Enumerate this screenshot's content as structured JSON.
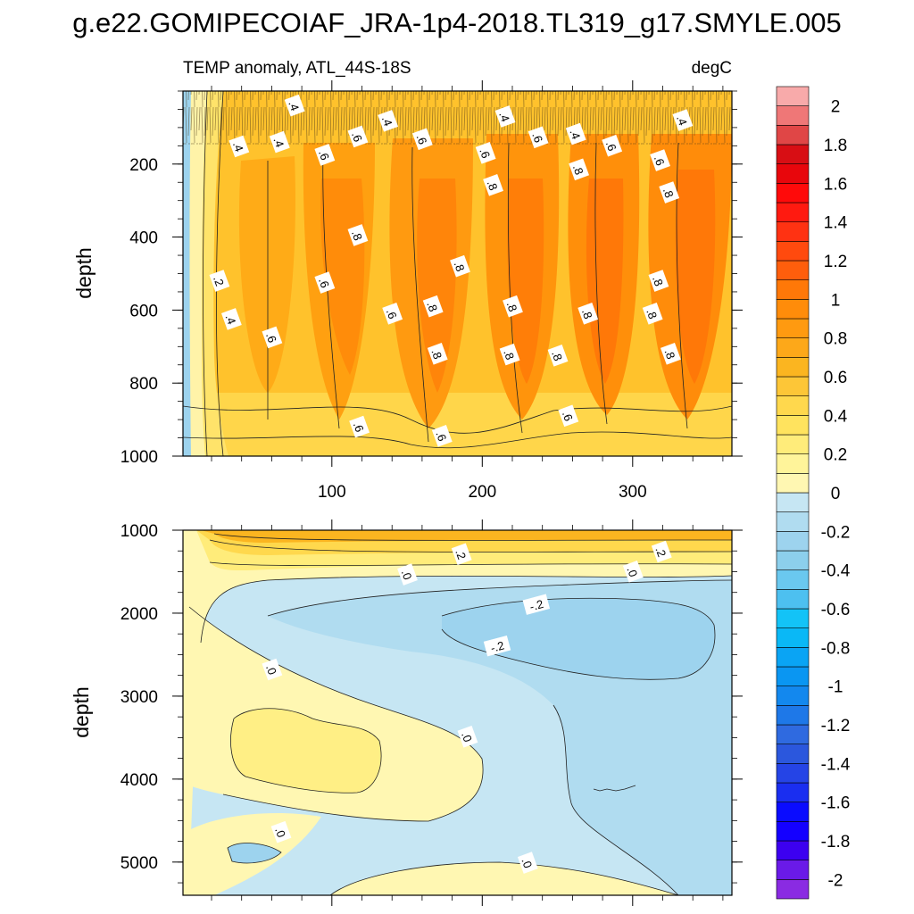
{
  "chart_data": {
    "type": "contour",
    "title": "g.e22.GOMIPECOIAF_JRA-1p4-2018.TL319_g17.SMYLE.005",
    "subtitle_left": "TEMP anomaly, ATL_44S-18S",
    "subtitle_right": "degC",
    "ylabel": "depth",
    "x_range": [
      1,
      366
    ],
    "colors": {
      "axis": "#000000",
      "contour_line": "#222222"
    },
    "upper_panel": {
      "y_range": [
        0,
        1000
      ],
      "y_ticks": [
        200,
        400,
        600,
        800,
        1000
      ],
      "y_tick_labels": [
        "200",
        "400",
        "600",
        "800",
        "1000"
      ],
      "x_ticks": [
        100,
        200,
        300
      ],
      "x_tick_labels": [
        "100",
        "200",
        "300"
      ],
      "contour_labels": [
        {
          "text": ".4",
          "x": 75,
          "y": 40
        },
        {
          "text": ".4",
          "x": 137,
          "y": 82
        },
        {
          "text": ".4",
          "x": 215,
          "y": 70
        },
        {
          "text": ".4",
          "x": 262,
          "y": 118
        },
        {
          "text": ".4",
          "x": 333,
          "y": 80
        },
        {
          "text": ".4",
          "x": 38,
          "y": 152
        },
        {
          "text": ".4",
          "x": 65,
          "y": 140
        },
        {
          "text": ".6",
          "x": 95,
          "y": 175
        },
        {
          "text": ".6",
          "x": 117,
          "y": 125
        },
        {
          "text": ".6",
          "x": 160,
          "y": 132
        },
        {
          "text": ".6",
          "x": 202,
          "y": 170
        },
        {
          "text": ".6",
          "x": 237,
          "y": 127
        },
        {
          "text": ".6",
          "x": 286,
          "y": 150
        },
        {
          "text": ".6",
          "x": 318,
          "y": 190
        },
        {
          "text": ".8",
          "x": 264,
          "y": 215
        },
        {
          "text": ".8",
          "x": 207,
          "y": 258
        },
        {
          "text": ".8",
          "x": 324,
          "y": 278
        },
        {
          "text": ".8",
          "x": 117,
          "y": 395
        },
        {
          "text": ".8",
          "x": 185,
          "y": 480
        },
        {
          "text": ".2",
          "x": 25,
          "y": 520
        },
        {
          "text": ".6",
          "x": 95,
          "y": 525
        },
        {
          "text": ".8",
          "x": 317,
          "y": 520
        },
        {
          "text": ".4",
          "x": 33,
          "y": 625
        },
        {
          "text": ".6",
          "x": 140,
          "y": 610
        },
        {
          "text": ".8",
          "x": 167,
          "y": 590
        },
        {
          "text": ".8",
          "x": 220,
          "y": 590
        },
        {
          "text": ".8",
          "x": 270,
          "y": 610
        },
        {
          "text": ".8",
          "x": 313,
          "y": 610
        },
        {
          "text": ".6",
          "x": 60,
          "y": 675
        },
        {
          "text": ".8",
          "x": 170,
          "y": 720
        },
        {
          "text": ".8",
          "x": 218,
          "y": 722
        },
        {
          "text": ".8",
          "x": 250,
          "y": 725
        },
        {
          "text": ".8",
          "x": 325,
          "y": 720
        },
        {
          "text": ".6",
          "x": 257,
          "y": 890
        },
        {
          "text": ".6",
          "x": 118,
          "y": 920
        },
        {
          "text": ".6",
          "x": 173,
          "y": 945
        }
      ]
    },
    "lower_panel": {
      "y_range": [
        1000,
        5400
      ],
      "y_ticks": [
        1000,
        2000,
        3000,
        4000,
        5000
      ],
      "y_tick_labels": [
        "1000",
        "2000",
        "3000",
        "4000",
        "5000"
      ],
      "x_ticks": [
        100,
        200,
        300
      ],
      "contour_labels": [
        {
          "text": ".2",
          "x": 186,
          "y": 1290
        },
        {
          "text": ".2",
          "x": 319,
          "y": 1260
        },
        {
          "text": ".0",
          "x": 150,
          "y": 1535
        },
        {
          "text": ".0",
          "x": 300,
          "y": 1500
        },
        {
          "text": "-.2",
          "x": 236,
          "y": 1900
        },
        {
          "text": "-.2",
          "x": 210,
          "y": 2400
        },
        {
          "text": ".0",
          "x": 60,
          "y": 2680
        },
        {
          "text": ".0",
          "x": 190,
          "y": 3490
        },
        {
          "text": ".0",
          "x": 66,
          "y": 4640
        },
        {
          "text": ".0",
          "x": 230,
          "y": 5010
        }
      ]
    },
    "colorbar": {
      "levels": [
        -2.2,
        -2,
        -1.9,
        -1.8,
        -1.7,
        -1.6,
        -1.5,
        -1.4,
        -1.3,
        -1.2,
        -1.1,
        -1,
        -0.9,
        -0.8,
        -0.7,
        -0.6,
        -0.5,
        -0.4,
        -0.3,
        -0.2,
        -0.1,
        0,
        0.1,
        0.2,
        0.3,
        0.4,
        0.5,
        0.6,
        0.7,
        0.8,
        0.9,
        1,
        1.1,
        1.2,
        1.3,
        1.4,
        1.5,
        1.6,
        1.7,
        1.8,
        1.9,
        2,
        2.2
      ],
      "colors_bottom_to_top": [
        "#8a2be2",
        "#6a1ae8",
        "#3c00f0",
        "#1400ff",
        "#0a0cff",
        "#1a2ef0",
        "#2544e6",
        "#2b57dd",
        "#2f6ae0",
        "#1e78e8",
        "#1388ee",
        "#0a96f2",
        "#0aa4f4",
        "#0ab8f6",
        "#13c3f7",
        "#4dc0f0",
        "#6ac8ef",
        "#8ccfec",
        "#9dd3ee",
        "#b0dcf0",
        "#c6e6f3",
        "#fff7b2",
        "#fff49a",
        "#ffec7a",
        "#ffe35e",
        "#ffd84d",
        "#fdc637",
        "#fbb520",
        "#fda819",
        "#ff9a10",
        "#ff8c0a",
        "#ff7808",
        "#ff5e0c",
        "#ff4a0e",
        "#ff3212",
        "#ff1a10",
        "#ff0a0a",
        "#e8060c",
        "#d80e14",
        "#e04646",
        "#ef7777",
        "#f8aaaa"
      ],
      "tick_labels": [
        {
          "text": "2",
          "value": 2
        },
        {
          "text": "1.8",
          "value": 1.8
        },
        {
          "text": "1.6",
          "value": 1.6
        },
        {
          "text": "1.4",
          "value": 1.4
        },
        {
          "text": "1.2",
          "value": 1.2
        },
        {
          "text": "1",
          "value": 1
        },
        {
          "text": "0.8",
          "value": 0.8
        },
        {
          "text": "0.6",
          "value": 0.6
        },
        {
          "text": "0.4",
          "value": 0.4
        },
        {
          "text": "0.2",
          "value": 0.2
        },
        {
          "text": "0",
          "value": 0
        },
        {
          "text": "-0.2",
          "value": -0.2
        },
        {
          "text": "-0.4",
          "value": -0.4
        },
        {
          "text": "-0.6",
          "value": -0.6
        },
        {
          "text": "-0.8",
          "value": -0.8
        },
        {
          "text": "-1",
          "value": -1
        },
        {
          "text": "-1.2",
          "value": -1.2
        },
        {
          "text": "-1.4",
          "value": -1.4
        },
        {
          "text": "-1.6",
          "value": -1.6
        },
        {
          "text": "-1.8",
          "value": -1.8
        },
        {
          "text": "-2",
          "value": -2
        }
      ]
    }
  }
}
